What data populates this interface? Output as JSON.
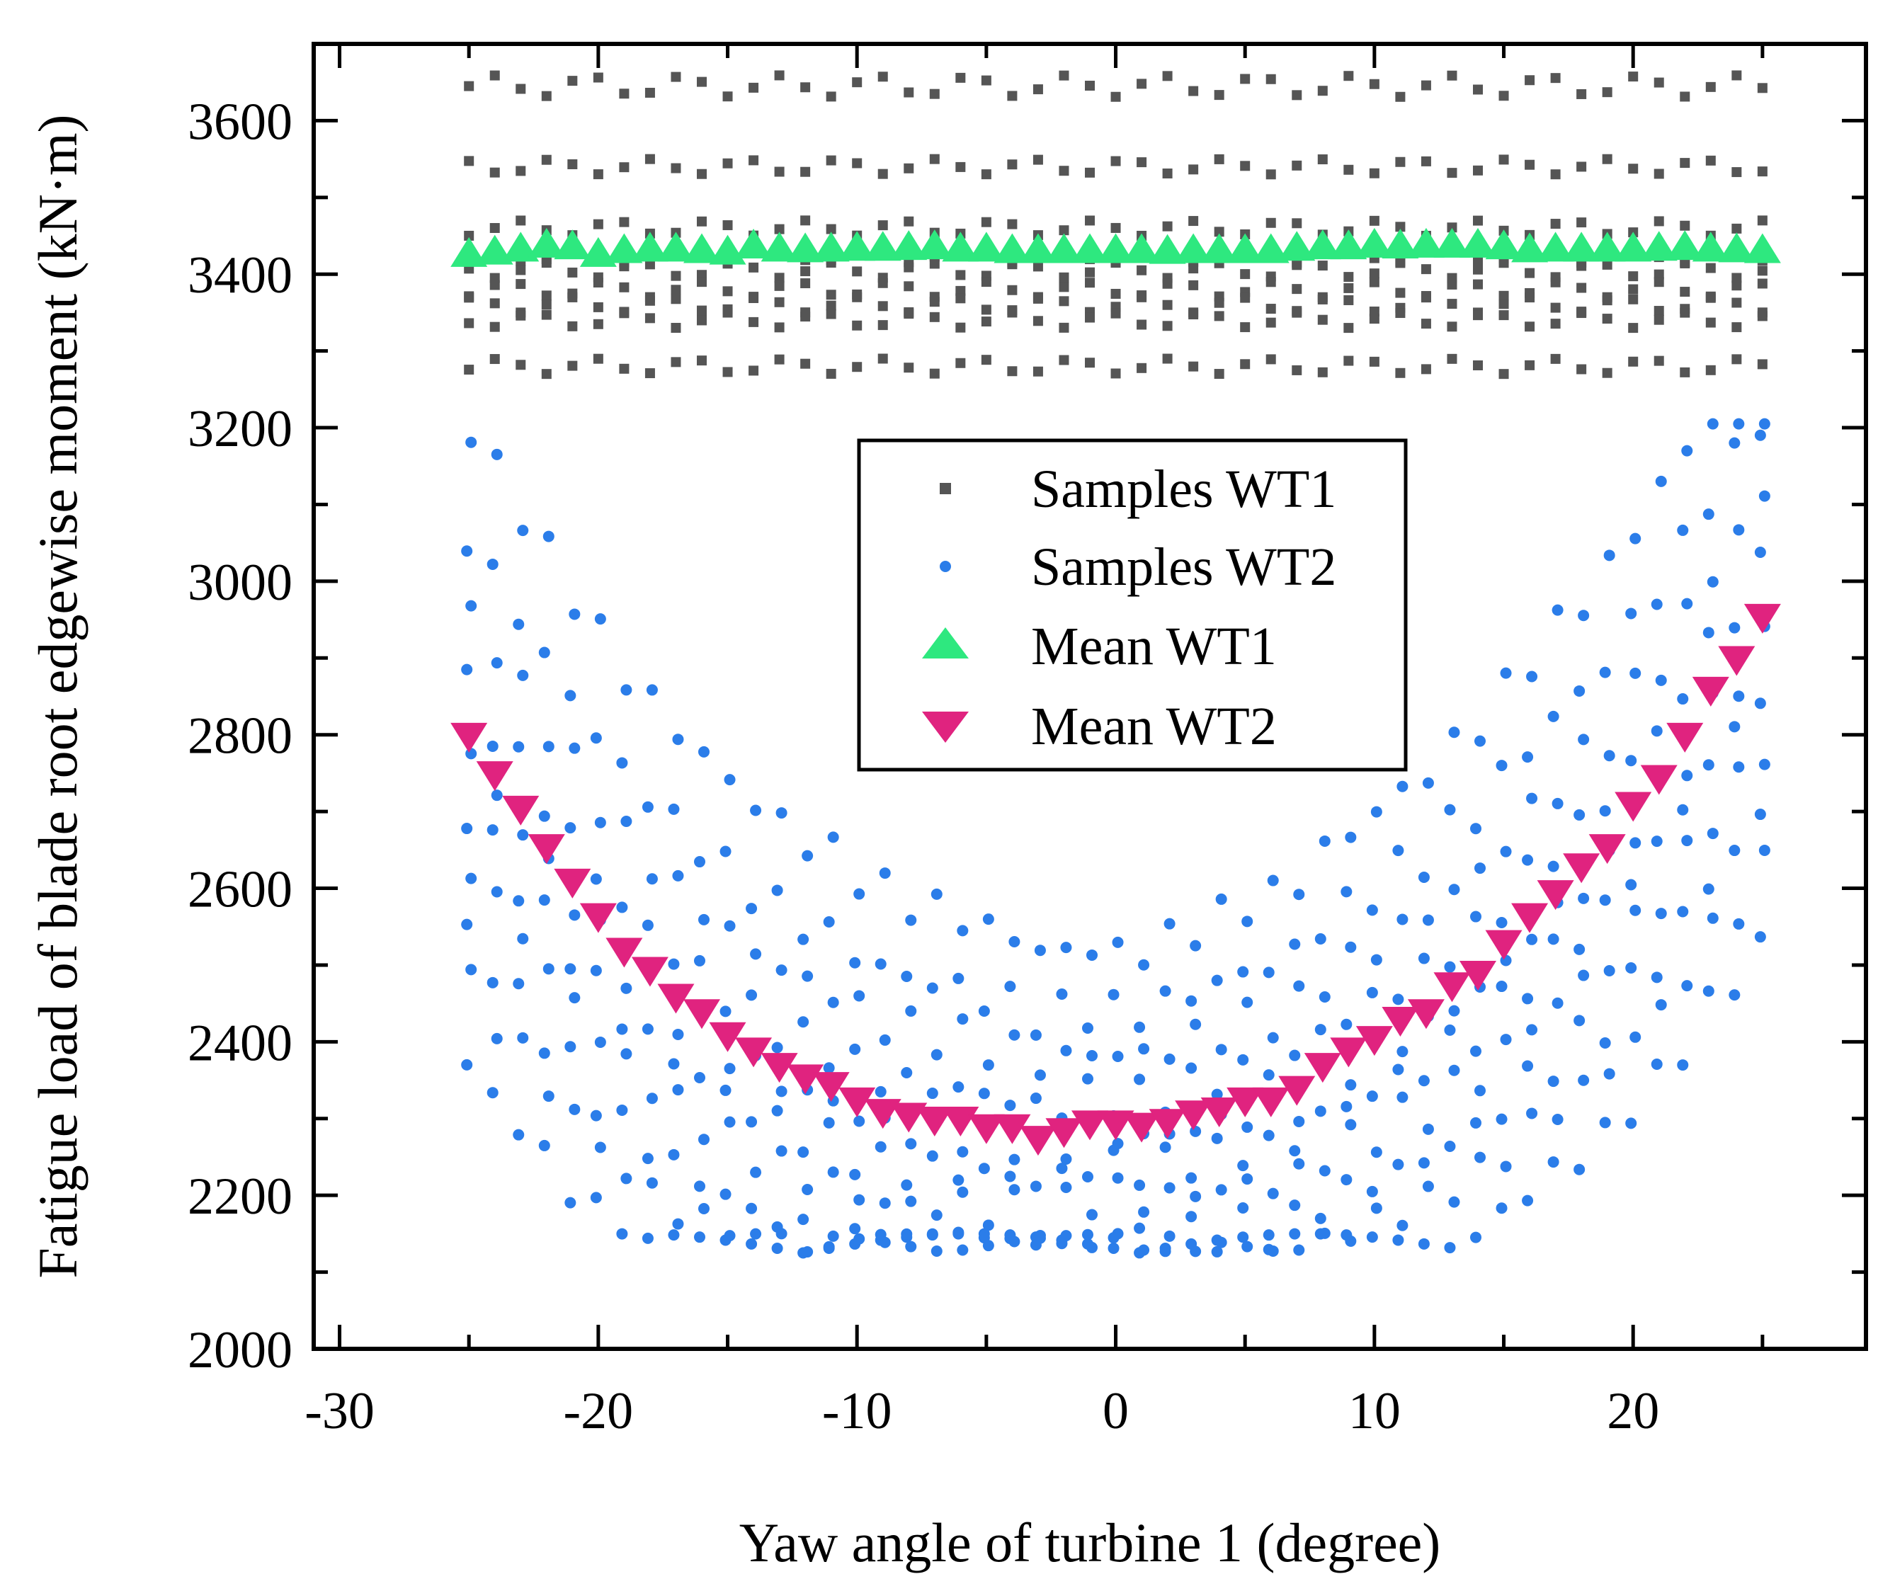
{
  "chart_data": {
    "type": "scatter",
    "title": "",
    "xlabel": "Yaw angle of turbine 1 (degree)",
    "ylabel": "Fatigue load of blade root edgewise moment (kN·m)",
    "xlim": [
      -31,
      29
    ],
    "ylim": [
      2000,
      3700
    ],
    "x_major_ticks": [
      -30,
      -20,
      -10,
      0,
      10,
      20
    ],
    "x_tick_labels": [
      "-30",
      "-20",
      "-10",
      "0",
      "10",
      "20"
    ],
    "y_major_ticks": [
      2000,
      2200,
      2400,
      2600,
      2800,
      3000,
      3200,
      3400,
      3600
    ],
    "y_tick_labels": [
      "2000",
      "2200",
      "2400",
      "2600",
      "2800",
      "3000",
      "3200",
      "3400",
      "3600"
    ],
    "y_minor_ticks": [
      2100,
      2300,
      2500,
      2700,
      2900,
      3100,
      3300,
      3500
    ],
    "x_minor_step": 5,
    "grid": false,
    "legend": {
      "position": "center",
      "entries": [
        {
          "label": "Samples WT1",
          "marker": "square",
          "color": "#555555"
        },
        {
          "label": "Samples WT2",
          "marker": "circle",
          "color": "#2b7de9"
        },
        {
          "label": "Mean WT1",
          "marker": "triangle-up",
          "color": "#2ee87f"
        },
        {
          "label": "Mean WT2",
          "marker": "triangle-down",
          "color": "#e0237f"
        }
      ]
    },
    "series": [
      {
        "name": "Mean WT1",
        "x": [
          -25,
          -24,
          -23,
          -22,
          -21,
          -20,
          -19,
          -18,
          -17,
          -16,
          -15,
          -14,
          -13,
          -12,
          -11,
          -10,
          -9,
          -8,
          -7,
          -6,
          -5,
          -4,
          -3,
          -2,
          -1,
          0,
          1,
          2,
          3,
          4,
          5,
          6,
          7,
          8,
          9,
          10,
          11,
          12,
          13,
          14,
          15,
          16,
          17,
          18,
          19,
          20,
          21,
          22,
          23,
          24,
          25
        ],
        "y": [
          3425,
          3428,
          3432,
          3437,
          3435,
          3425,
          3430,
          3432,
          3432,
          3430,
          3428,
          3436,
          3432,
          3431,
          3432,
          3433,
          3433,
          3434,
          3435,
          3432,
          3432,
          3430,
          3430,
          3430,
          3430,
          3430,
          3430,
          3429,
          3430,
          3430,
          3430,
          3430,
          3433,
          3435,
          3435,
          3437,
          3436,
          3437,
          3437,
          3437,
          3435,
          3431,
          3432,
          3432,
          3432,
          3432,
          3433,
          3434,
          3432,
          3431,
          3430
        ]
      },
      {
        "name": "Mean WT2",
        "x": [
          -25,
          -24,
          -23,
          -22,
          -21,
          -20,
          -19,
          -18,
          -17,
          -16,
          -15,
          -14,
          -13,
          -12,
          -11,
          -10,
          -9,
          -8,
          -7,
          -6,
          -5,
          -4,
          -3,
          -2,
          -1,
          0,
          1,
          2,
          3,
          4,
          5,
          6,
          7,
          8,
          9,
          10,
          11,
          12,
          13,
          14,
          15,
          16,
          17,
          18,
          19,
          20,
          21,
          22,
          23,
          24,
          25
        ],
        "y": [
          2800,
          2750,
          2705,
          2655,
          2610,
          2565,
          2520,
          2495,
          2460,
          2440,
          2410,
          2390,
          2370,
          2355,
          2345,
          2325,
          2310,
          2305,
          2300,
          2300,
          2290,
          2290,
          2275,
          2285,
          2295,
          2295,
          2292,
          2297,
          2308,
          2312,
          2325,
          2325,
          2340,
          2370,
          2390,
          2405,
          2430,
          2440,
          2475,
          2490,
          2530,
          2565,
          2595,
          2630,
          2655,
          2710,
          2745,
          2800,
          2860,
          2900,
          2955
        ]
      }
    ],
    "wt1_sample_levels": [
      3645,
      3540,
      3460,
      3425,
      3405,
      3380,
      3360,
      3340,
      3280
    ],
    "wt1_sample_x": [
      -25,
      -24,
      -23,
      -22,
      -21,
      -20,
      -19,
      -18,
      -17,
      -16,
      -15,
      -14,
      -13,
      -12,
      -11,
      -10,
      -9,
      -8,
      -7,
      -6,
      -5,
      -4,
      -3,
      -2,
      -1,
      0,
      1,
      2,
      3,
      4,
      5,
      6,
      7,
      8,
      9,
      10,
      11,
      12,
      13,
      14,
      15,
      16,
      17,
      18,
      19,
      20,
      21,
      22,
      23,
      24,
      25
    ],
    "wt2_sample_count_per_x": 10,
    "wt2_sample_spread": [
      -430,
      -330,
      -260,
      -170,
      -100,
      -30,
      60,
      160,
      260,
      400
    ]
  }
}
